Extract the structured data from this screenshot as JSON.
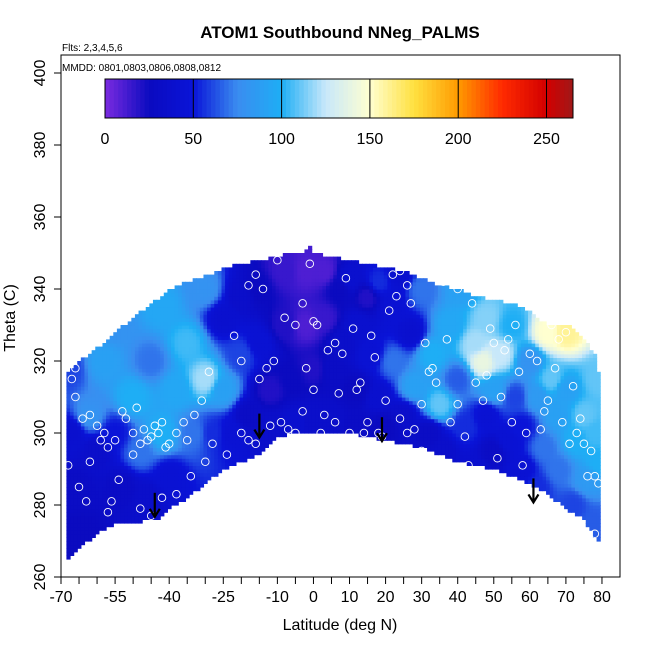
{
  "chart_data": {
    "type": "heatmap",
    "title": "ATOM1 Southbound NNeg_PALMS",
    "annotations": [
      "Flts: 2,3,4,5,6",
      "MMDD: 0801,0803,0806,0808,0812"
    ],
    "xlabel": "Latitude (deg N)",
    "ylabel": "Theta (C)",
    "xlim": [
      -70,
      85
    ],
    "ylim": [
      260,
      405
    ],
    "x_tick_labels": [
      "-70",
      "-55",
      "-40",
      "-25",
      "-10",
      "0",
      "10",
      "20",
      "30",
      "40",
      "50",
      "60",
      "70",
      "80"
    ],
    "x_tick_values": [
      -70,
      -55,
      -40,
      -25,
      -10,
      0,
      10,
      20,
      30,
      40,
      50,
      60,
      70,
      80
    ],
    "x_minor_ticks": [
      -65,
      -60,
      -50,
      -45,
      -35,
      -30,
      -20,
      -15,
      -5,
      5,
      15,
      25,
      35,
      45,
      55,
      65,
      75
    ],
    "y_tick_labels": [
      "260",
      "280",
      "300",
      "320",
      "340",
      "360",
      "380",
      "400"
    ],
    "y_tick_values": [
      260,
      280,
      300,
      320,
      340,
      360,
      380,
      400
    ],
    "colorbar": {
      "min": 0,
      "max": 265,
      "tick_labels": [
        "0",
        "50",
        "100",
        "150",
        "200",
        "250"
      ],
      "tick_values": [
        0,
        50,
        100,
        150,
        200,
        250
      ],
      "stops": [
        {
          "v": 0,
          "c": "#7b2be0"
        },
        {
          "v": 25,
          "c": "#0b0bc0"
        },
        {
          "v": 50,
          "c": "#0a14d8"
        },
        {
          "v": 75,
          "c": "#3a8cf0"
        },
        {
          "v": 100,
          "c": "#1eaef5"
        },
        {
          "v": 125,
          "c": "#c8e8fa"
        },
        {
          "v": 150,
          "c": "#ffffd0"
        },
        {
          "v": 175,
          "c": "#ffe040"
        },
        {
          "v": 200,
          "c": "#ff9a00"
        },
        {
          "v": 225,
          "c": "#ff2a00"
        },
        {
          "v": 250,
          "c": "#d20000"
        },
        {
          "v": 265,
          "c": "#a01818"
        }
      ]
    },
    "field_knots": [
      [
        -68,
        318,
        60
      ],
      [
        -67,
        300,
        40
      ],
      [
        -66,
        285,
        30
      ],
      [
        -64,
        272,
        25
      ],
      [
        -62,
        305,
        80
      ],
      [
        -60,
        295,
        35
      ],
      [
        -58,
        320,
        90
      ],
      [
        -55,
        330,
        80
      ],
      [
        -55,
        300,
        50
      ],
      [
        -53,
        285,
        30
      ],
      [
        -50,
        310,
        100
      ],
      [
        -48,
        295,
        70
      ],
      [
        -46,
        282,
        35
      ],
      [
        -45,
        320,
        70
      ],
      [
        -42,
        335,
        95
      ],
      [
        -42,
        300,
        100
      ],
      [
        -40,
        288,
        45
      ],
      [
        -38,
        312,
        95
      ],
      [
        -35,
        325,
        105
      ],
      [
        -33,
        300,
        70
      ],
      [
        -30,
        340,
        80
      ],
      [
        -30,
        315,
        120
      ],
      [
        -28,
        300,
        55
      ],
      [
        -25,
        332,
        40
      ],
      [
        -25,
        312,
        90
      ],
      [
        -23,
        300,
        45
      ],
      [
        -20,
        338,
        35
      ],
      [
        -20,
        322,
        60
      ],
      [
        -18,
        305,
        30
      ],
      [
        -15,
        340,
        25
      ],
      [
        -15,
        325,
        45
      ],
      [
        -12,
        312,
        20
      ],
      [
        -12,
        302,
        35
      ],
      [
        -8,
        345,
        15
      ],
      [
        -8,
        330,
        20
      ],
      [
        -6,
        315,
        25
      ],
      [
        -5,
        303,
        40
      ],
      [
        -2,
        345,
        10
      ],
      [
        -2,
        330,
        10
      ],
      [
        0,
        318,
        20
      ],
      [
        0,
        304,
        35
      ],
      [
        3,
        345,
        10
      ],
      [
        3,
        332,
        15
      ],
      [
        5,
        318,
        30
      ],
      [
        5,
        303,
        35
      ],
      [
        7,
        340,
        25
      ],
      [
        8,
        325,
        35
      ],
      [
        10,
        343,
        40
      ],
      [
        12,
        330,
        40
      ],
      [
        12,
        312,
        25
      ],
      [
        12,
        302,
        30
      ],
      [
        15,
        338,
        20
      ],
      [
        16,
        322,
        45
      ],
      [
        18,
        342,
        55
      ],
      [
        18,
        310,
        40
      ],
      [
        20,
        302,
        25
      ],
      [
        22,
        335,
        45
      ],
      [
        22,
        320,
        70
      ],
      [
        24,
        344,
        40
      ],
      [
        25,
        305,
        35
      ],
      [
        27,
        328,
        40
      ],
      [
        28,
        313,
        90
      ],
      [
        30,
        340,
        70
      ],
      [
        32,
        300,
        30
      ],
      [
        33,
        322,
        100
      ],
      [
        35,
        308,
        110
      ],
      [
        36,
        295,
        35
      ],
      [
        38,
        330,
        95
      ],
      [
        40,
        315,
        65
      ],
      [
        41,
        340,
        90
      ],
      [
        42,
        302,
        55
      ],
      [
        44,
        290,
        40
      ],
      [
        45,
        325,
        120
      ],
      [
        47,
        320,
        140
      ],
      [
        48,
        332,
        115
      ],
      [
        48,
        305,
        45
      ],
      [
        50,
        312,
        90
      ],
      [
        50,
        295,
        30
      ],
      [
        52,
        322,
        125
      ],
      [
        54,
        298,
        45
      ],
      [
        55,
        330,
        100
      ],
      [
        56,
        310,
        60
      ],
      [
        58,
        302,
        50
      ],
      [
        58,
        290,
        45
      ],
      [
        60,
        320,
        80
      ],
      [
        62,
        285,
        55
      ],
      [
        62,
        310,
        85
      ],
      [
        64,
        296,
        70
      ],
      [
        65,
        328,
        150
      ],
      [
        66,
        315,
        110
      ],
      [
        68,
        305,
        90
      ],
      [
        68,
        290,
        70
      ],
      [
        70,
        312,
        90
      ],
      [
        70,
        328,
        160
      ],
      [
        72,
        280,
        60
      ],
      [
        73,
        298,
        100
      ],
      [
        75,
        305,
        110
      ],
      [
        76,
        287,
        85
      ],
      [
        78,
        275,
        65
      ],
      [
        78,
        300,
        105
      ],
      [
        79,
        292,
        100
      ],
      [
        79,
        315,
        110
      ]
    ],
    "top_boundary": [
      [
        -68.5,
        317
      ],
      [
        -67,
        318
      ],
      [
        -65,
        320
      ],
      [
        -62,
        322
      ],
      [
        -58,
        325
      ],
      [
        -55,
        328
      ],
      [
        -50,
        332
      ],
      [
        -45,
        336
      ],
      [
        -42,
        338
      ],
      [
        -38,
        341
      ],
      [
        -32,
        343
      ],
      [
        -28,
        344
      ],
      [
        -24,
        346
      ],
      [
        -20,
        347
      ],
      [
        -15,
        348
      ],
      [
        -10,
        349
      ],
      [
        -7,
        350
      ],
      [
        -3,
        350
      ],
      [
        -1,
        352
      ],
      [
        0,
        350
      ],
      [
        5,
        349
      ],
      [
        10,
        348
      ],
      [
        15,
        347
      ],
      [
        20,
        346
      ],
      [
        25,
        345
      ],
      [
        30,
        343
      ],
      [
        35,
        341
      ],
      [
        40,
        340
      ],
      [
        45,
        338
      ],
      [
        50,
        337
      ],
      [
        55,
        336
      ],
      [
        60,
        334
      ],
      [
        63,
        331
      ],
      [
        66,
        330
      ],
      [
        70,
        330
      ],
      [
        72,
        329
      ],
      [
        75,
        326
      ],
      [
        78,
        322
      ],
      [
        79,
        317
      ]
    ],
    "bottom_boundary": [
      [
        79,
        270
      ],
      [
        75,
        276
      ],
      [
        70,
        279
      ],
      [
        65,
        283
      ],
      [
        60,
        286
      ],
      [
        55,
        288
      ],
      [
        50,
        290
      ],
      [
        45,
        291
      ],
      [
        40,
        292
      ],
      [
        35,
        294
      ],
      [
        30,
        296
      ],
      [
        25,
        297
      ],
      [
        20,
        298
      ],
      [
        15,
        299
      ],
      [
        10,
        300
      ],
      [
        5,
        300
      ],
      [
        0,
        300
      ],
      [
        -5,
        300
      ],
      [
        -10,
        299
      ],
      [
        -12,
        297
      ],
      [
        -15,
        294
      ],
      [
        -20,
        292
      ],
      [
        -25,
        290
      ],
      [
        -30,
        286
      ],
      [
        -35,
        282
      ],
      [
        -40,
        279
      ],
      [
        -43,
        276
      ],
      [
        -45,
        276
      ],
      [
        -50,
        275
      ],
      [
        -55,
        275
      ],
      [
        -60,
        272
      ],
      [
        -65,
        268
      ],
      [
        -68,
        265
      ]
    ],
    "observations": [
      [
        -68,
        291
      ],
      [
        -67,
        315
      ],
      [
        -66,
        310
      ],
      [
        -64,
        304
      ],
      [
        -62,
        305
      ],
      [
        -60,
        302
      ],
      [
        -58,
        300
      ],
      [
        -57,
        296
      ],
      [
        -55,
        298
      ],
      [
        -53,
        306
      ],
      [
        -52,
        304
      ],
      [
        -50,
        300
      ],
      [
        -50,
        294
      ],
      [
        -49,
        307
      ],
      [
        -48,
        297
      ],
      [
        -47,
        301
      ],
      [
        -46,
        298
      ],
      [
        -45,
        299
      ],
      [
        -44,
        302
      ],
      [
        -43,
        300
      ],
      [
        -42,
        303
      ],
      [
        -41,
        296
      ],
      [
        -40,
        297
      ],
      [
        -38,
        300
      ],
      [
        -36,
        303
      ],
      [
        -35,
        298
      ],
      [
        -33,
        305
      ],
      [
        -31,
        309
      ],
      [
        -29,
        317
      ],
      [
        -26,
        286
      ],
      [
        -24,
        294
      ],
      [
        -22,
        327
      ],
      [
        -20,
        320
      ],
      [
        -18,
        341
      ],
      [
        -16,
        344
      ],
      [
        -14,
        340
      ],
      [
        -12,
        302
      ],
      [
        -10,
        348
      ],
      [
        -8,
        332
      ],
      [
        -5,
        330
      ],
      [
        -3,
        336
      ],
      [
        -1,
        347
      ],
      [
        0,
        331
      ],
      [
        1,
        330
      ],
      [
        2,
        300
      ],
      [
        4,
        323
      ],
      [
        6,
        325
      ],
      [
        8,
        322
      ],
      [
        9,
        343
      ],
      [
        10,
        300
      ],
      [
        11,
        329
      ],
      [
        13,
        314
      ],
      [
        14,
        300
      ],
      [
        16,
        327
      ],
      [
        17,
        321
      ],
      [
        18,
        300
      ],
      [
        19,
        299
      ],
      [
        21,
        334
      ],
      [
        22,
        344
      ],
      [
        23,
        338
      ],
      [
        24,
        345
      ],
      [
        26,
        341
      ],
      [
        27,
        336
      ],
      [
        28,
        301
      ],
      [
        30,
        295
      ],
      [
        31,
        325
      ],
      [
        32,
        317
      ],
      [
        34,
        314
      ],
      [
        35,
        292
      ],
      [
        36,
        342
      ],
      [
        38,
        303
      ],
      [
        40,
        308
      ],
      [
        42,
        299
      ],
      [
        43,
        291
      ],
      [
        45,
        314
      ],
      [
        47,
        309
      ],
      [
        49,
        329
      ],
      [
        50,
        325
      ],
      [
        51,
        293
      ],
      [
        53,
        323
      ],
      [
        54,
        326
      ],
      [
        55,
        303
      ],
      [
        57,
        317
      ],
      [
        58,
        291
      ],
      [
        60,
        322
      ],
      [
        62,
        320
      ],
      [
        63,
        301
      ],
      [
        65,
        309
      ],
      [
        66,
        330
      ],
      [
        68,
        326
      ],
      [
        70,
        328
      ],
      [
        72,
        313
      ],
      [
        73,
        300
      ],
      [
        74,
        304
      ],
      [
        75,
        297
      ],
      [
        76,
        288
      ],
      [
        78,
        288
      ],
      [
        78,
        272
      ],
      [
        79,
        286
      ],
      [
        -66,
        318
      ],
      [
        -65,
        285
      ],
      [
        -63,
        281
      ],
      [
        -62,
        292
      ],
      [
        -59,
        298
      ],
      [
        -57,
        278
      ],
      [
        -56,
        281
      ],
      [
        -54,
        287
      ],
      [
        -48,
        279
      ],
      [
        -45,
        277
      ],
      [
        -42,
        282
      ],
      [
        -38,
        283
      ],
      [
        -34,
        288
      ],
      [
        -30,
        292
      ],
      [
        -28,
        297
      ],
      [
        -20,
        300
      ],
      [
        -18,
        298
      ],
      [
        -16,
        297
      ],
      [
        -15,
        315
      ],
      [
        -13,
        318
      ],
      [
        -11,
        320
      ],
      [
        -9,
        303
      ],
      [
        -7,
        301
      ],
      [
        -5,
        300
      ],
      [
        -3,
        306
      ],
      [
        -2,
        318
      ],
      [
        0,
        312
      ],
      [
        3,
        305
      ],
      [
        6,
        303
      ],
      [
        7,
        311
      ],
      [
        12,
        312
      ],
      [
        15,
        303
      ],
      [
        20,
        309
      ],
      [
        24,
        304
      ],
      [
        26,
        300
      ],
      [
        30,
        308
      ],
      [
        33,
        318
      ],
      [
        37,
        326
      ],
      [
        40,
        340
      ],
      [
        44,
        336
      ],
      [
        48,
        316
      ],
      [
        52,
        310
      ],
      [
        56,
        330
      ],
      [
        59,
        300
      ],
      [
        64,
        306
      ],
      [
        67,
        318
      ],
      [
        69,
        303
      ],
      [
        71,
        297
      ],
      [
        77,
        295
      ]
    ],
    "arrows": [
      [
        -44,
        282
      ],
      [
        -15,
        304
      ],
      [
        19,
        303
      ],
      [
        61,
        286
      ]
    ],
    "colors": {
      "background": "#ffffff",
      "axis": "#000000",
      "marker": "#ffffff",
      "arrow": "#000000"
    }
  }
}
